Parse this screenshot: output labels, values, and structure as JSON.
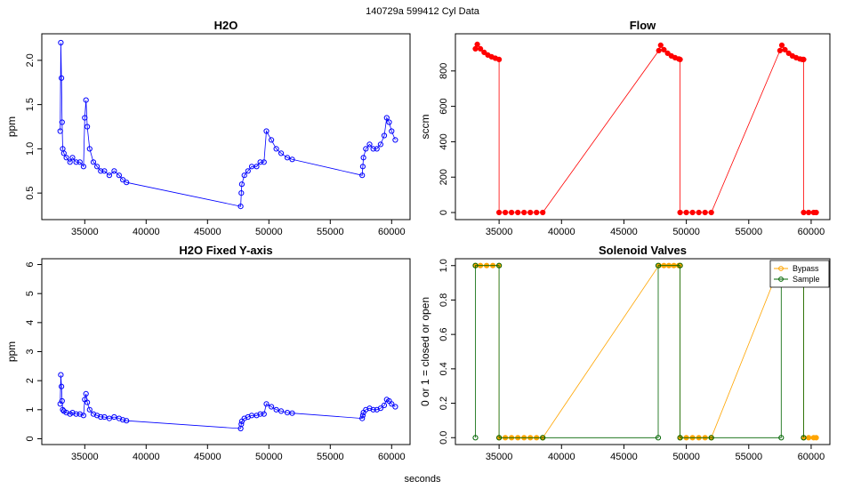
{
  "figure": {
    "title": "140729a    599412   Cyl Data",
    "xlabel": "seconds"
  },
  "chart_data": [
    {
      "type": "line",
      "panel": "h2o",
      "title": "H2O",
      "xlabel": "",
      "ylabel": "ppm",
      "xlim": [
        31500,
        61500
      ],
      "ylim": [
        0.2,
        2.3
      ],
      "xticks": [
        35000,
        40000,
        45000,
        50000,
        55000,
        60000
      ],
      "yticks": [
        0.5,
        1.0,
        1.5,
        2.0
      ],
      "xtick_labels": [
        "35000",
        "40000",
        "45000",
        "50000",
        "55000",
        "60000"
      ],
      "ytick_labels": [
        "0.5",
        "1.0",
        "1.5",
        "2.0"
      ],
      "series": [
        {
          "name": "",
          "color": "#0000ff",
          "marker": "open-circle",
          "x": [
            33000,
            33050,
            33100,
            33150,
            33200,
            33300,
            33500,
            33800,
            34000,
            34300,
            34600,
            34900,
            35000,
            35100,
            35200,
            35400,
            35700,
            36000,
            36300,
            36600,
            37000,
            37400,
            37800,
            38100,
            38400,
            47700,
            47750,
            47800,
            48000,
            48300,
            48600,
            49000,
            49300,
            49600,
            49800,
            50200,
            50600,
            51000,
            51500,
            51900,
            57600,
            57650,
            57700,
            57900,
            58200,
            58500,
            58800,
            59100,
            59400,
            59600,
            59800,
            60000,
            60300
          ],
          "y": [
            1.2,
            2.2,
            1.8,
            1.3,
            1.0,
            0.95,
            0.9,
            0.85,
            0.9,
            0.85,
            0.85,
            0.8,
            1.35,
            1.55,
            1.25,
            1.0,
            0.85,
            0.8,
            0.75,
            0.75,
            0.7,
            0.75,
            0.7,
            0.65,
            0.62,
            0.35,
            0.5,
            0.6,
            0.7,
            0.75,
            0.8,
            0.8,
            0.85,
            0.85,
            1.2,
            1.1,
            1.0,
            0.95,
            0.9,
            0.88,
            0.7,
            0.8,
            0.9,
            1.0,
            1.05,
            1.0,
            1.0,
            1.05,
            1.15,
            1.35,
            1.3,
            1.2,
            1.1
          ]
        }
      ]
    },
    {
      "type": "line",
      "panel": "flow",
      "title": "Flow",
      "xlabel": "",
      "ylabel": "sccm",
      "xlim": [
        31500,
        61500
      ],
      "ylim": [
        -40,
        1010
      ],
      "xticks": [
        35000,
        40000,
        45000,
        50000,
        55000,
        60000
      ],
      "yticks": [
        0,
        200,
        400,
        600,
        800
      ],
      "xtick_labels": [
        "35000",
        "40000",
        "45000",
        "50000",
        "55000",
        "60000"
      ],
      "ytick_labels": [
        "0",
        "200",
        "400",
        "600",
        "800"
      ],
      "series": [
        {
          "name": "",
          "color": "#ff0000",
          "marker": "filled-circle",
          "x": [
            33100,
            33250,
            33500,
            33800,
            34100,
            34400,
            34700,
            35000,
            35000,
            35500,
            36000,
            36500,
            37000,
            37500,
            38000,
            38500,
            47800,
            47950,
            48200,
            48500,
            48800,
            49100,
            49400,
            49500,
            49500,
            50000,
            50500,
            51000,
            51500,
            52000,
            57500,
            57650,
            57900,
            58200,
            58500,
            58800,
            59100,
            59300,
            59400,
            59400,
            59800,
            60200,
            60400
          ],
          "y": [
            925,
            950,
            925,
            905,
            890,
            880,
            872,
            865,
            0,
            0,
            0,
            0,
            0,
            0,
            0,
            0,
            915,
            945,
            920,
            900,
            885,
            875,
            868,
            865,
            0,
            0,
            0,
            0,
            0,
            0,
            915,
            945,
            920,
            900,
            885,
            875,
            868,
            865,
            865,
            0,
            0,
            0,
            0
          ]
        }
      ]
    },
    {
      "type": "line",
      "panel": "h2o-fixed",
      "title": "H2O Fixed Y-axis",
      "xlabel": "",
      "ylabel": "ppm",
      "xlim": [
        31500,
        61500
      ],
      "ylim": [
        -0.2,
        6.2
      ],
      "xticks": [
        35000,
        40000,
        45000,
        50000,
        55000,
        60000
      ],
      "yticks": [
        0,
        1,
        2,
        3,
        4,
        5,
        6
      ],
      "xtick_labels": [
        "35000",
        "40000",
        "45000",
        "50000",
        "55000",
        "60000"
      ],
      "ytick_labels": [
        "0",
        "1",
        "2",
        "3",
        "4",
        "5",
        "6"
      ],
      "series": [
        {
          "name": "",
          "color": "#0000ff",
          "marker": "open-circle",
          "x": [
            33000,
            33050,
            33100,
            33150,
            33200,
            33300,
            33500,
            33800,
            34000,
            34300,
            34600,
            34900,
            35000,
            35100,
            35200,
            35400,
            35700,
            36000,
            36300,
            36600,
            37000,
            37400,
            37800,
            38100,
            38400,
            47700,
            47750,
            47800,
            48000,
            48300,
            48600,
            49000,
            49300,
            49600,
            49800,
            50200,
            50600,
            51000,
            51500,
            51900,
            57600,
            57650,
            57700,
            57900,
            58200,
            58500,
            58800,
            59100,
            59400,
            59600,
            59800,
            60000,
            60300
          ],
          "y": [
            1.2,
            2.2,
            1.8,
            1.3,
            1.0,
            0.95,
            0.9,
            0.85,
            0.9,
            0.85,
            0.85,
            0.8,
            1.35,
            1.55,
            1.25,
            1.0,
            0.85,
            0.8,
            0.75,
            0.75,
            0.7,
            0.75,
            0.7,
            0.65,
            0.62,
            0.35,
            0.5,
            0.6,
            0.7,
            0.75,
            0.8,
            0.8,
            0.85,
            0.85,
            1.2,
            1.1,
            1.0,
            0.95,
            0.9,
            0.88,
            0.7,
            0.8,
            0.9,
            1.0,
            1.05,
            1.0,
            1.0,
            1.05,
            1.15,
            1.35,
            1.3,
            1.2,
            1.1
          ]
        }
      ]
    },
    {
      "type": "line",
      "panel": "solenoid",
      "title": "Solenoid Valves",
      "xlabel": "",
      "ylabel": "0 or 1 = closed or open",
      "xlim": [
        31500,
        61500
      ],
      "ylim": [
        -0.04,
        1.04
      ],
      "xticks": [
        35000,
        40000,
        45000,
        50000,
        55000,
        60000
      ],
      "yticks": [
        0,
        0.2,
        0.4,
        0.6,
        0.8,
        1.0
      ],
      "xtick_labels": [
        "35000",
        "40000",
        "45000",
        "50000",
        "55000",
        "60000"
      ],
      "ytick_labels": [
        "0.0",
        "0.2",
        "0.4",
        "0.6",
        "0.8",
        "1.0"
      ],
      "legend": {
        "position": "top-right",
        "entries": [
          "Bypass",
          "Sample"
        ]
      },
      "series": [
        {
          "name": "Bypass",
          "color": "#ffa500",
          "marker": "filled-circle",
          "x": [
            33100,
            33500,
            34000,
            34500,
            35000,
            35000,
            35500,
            36000,
            36500,
            37000,
            37500,
            38000,
            38500,
            47800,
            48200,
            48600,
            49000,
            49400,
            49500,
            49500,
            50000,
            50500,
            51000,
            51500,
            52000,
            57500,
            57900,
            58300,
            58700,
            59100,
            59400,
            59400,
            59800,
            60200,
            60400
          ],
          "y": [
            1,
            1,
            1,
            1,
            1,
            0,
            0,
            0,
            0,
            0,
            0,
            0,
            0,
            1,
            1,
            1,
            1,
            1,
            1,
            0,
            0,
            0,
            0,
            0,
            0,
            1,
            1,
            1,
            1,
            1,
            1,
            0,
            0,
            0,
            0
          ]
        },
        {
          "name": "Sample",
          "color": "#006400",
          "marker": "open-circle",
          "x": [
            33100,
            33100,
            35000,
            35000,
            38500,
            47750,
            47750,
            49500,
            49500,
            52000,
            57600,
            57600,
            59400,
            59400
          ],
          "y": [
            0,
            1,
            1,
            0,
            0,
            0,
            1,
            1,
            0,
            0,
            0,
            1,
            1,
            0
          ]
        }
      ]
    }
  ]
}
